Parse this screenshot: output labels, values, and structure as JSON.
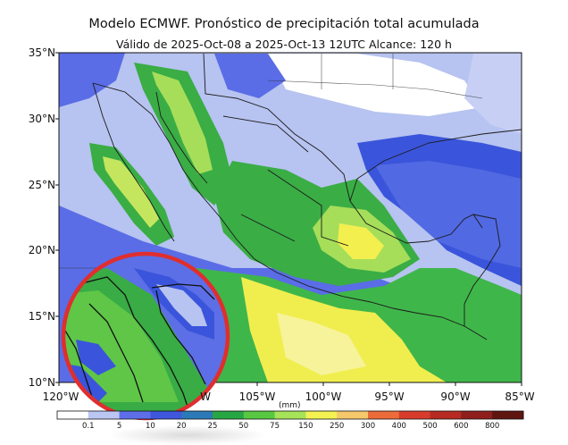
{
  "header": {
    "title": "Modelo ECMWF. Pronóstico de precipitación total acumulada",
    "subtitle": "Válido de 2025-Oct-08 a 2025-Oct-13 12UTC   Alcance: 120 h"
  },
  "axes": {
    "lat_labels": [
      "35°N",
      "30°N",
      "25°N",
      "20°N",
      "15°N",
      "10°N"
    ],
    "lon_labels": [
      "120°W",
      "W",
      "105°W",
      "100°W",
      "95°W",
      "90°W",
      "85°W"
    ]
  },
  "colorbar": {
    "unit": "(mm)",
    "ticks": [
      "0.1",
      "5",
      "10",
      "20",
      "25",
      "50",
      "75",
      "150",
      "250",
      "300",
      "400",
      "500",
      "600",
      "800"
    ],
    "colors": [
      "#ffffff",
      "#bcc6f2",
      "#5e6ee8",
      "#3f57dd",
      "#2b79b8",
      "#27a644",
      "#58c843",
      "#a6e358",
      "#f3f252",
      "#f5c86b",
      "#ec6b3a",
      "#d73b2c",
      "#b52a22",
      "#8e1f1c",
      "#5f1510"
    ]
  },
  "map": {
    "region": "México y Centroamérica",
    "lat_range": [
      10,
      35
    ],
    "lon_range": [
      -120,
      -85
    ],
    "inset_border_color": "#e02e2e",
    "inset": "zoom-circle"
  }
}
